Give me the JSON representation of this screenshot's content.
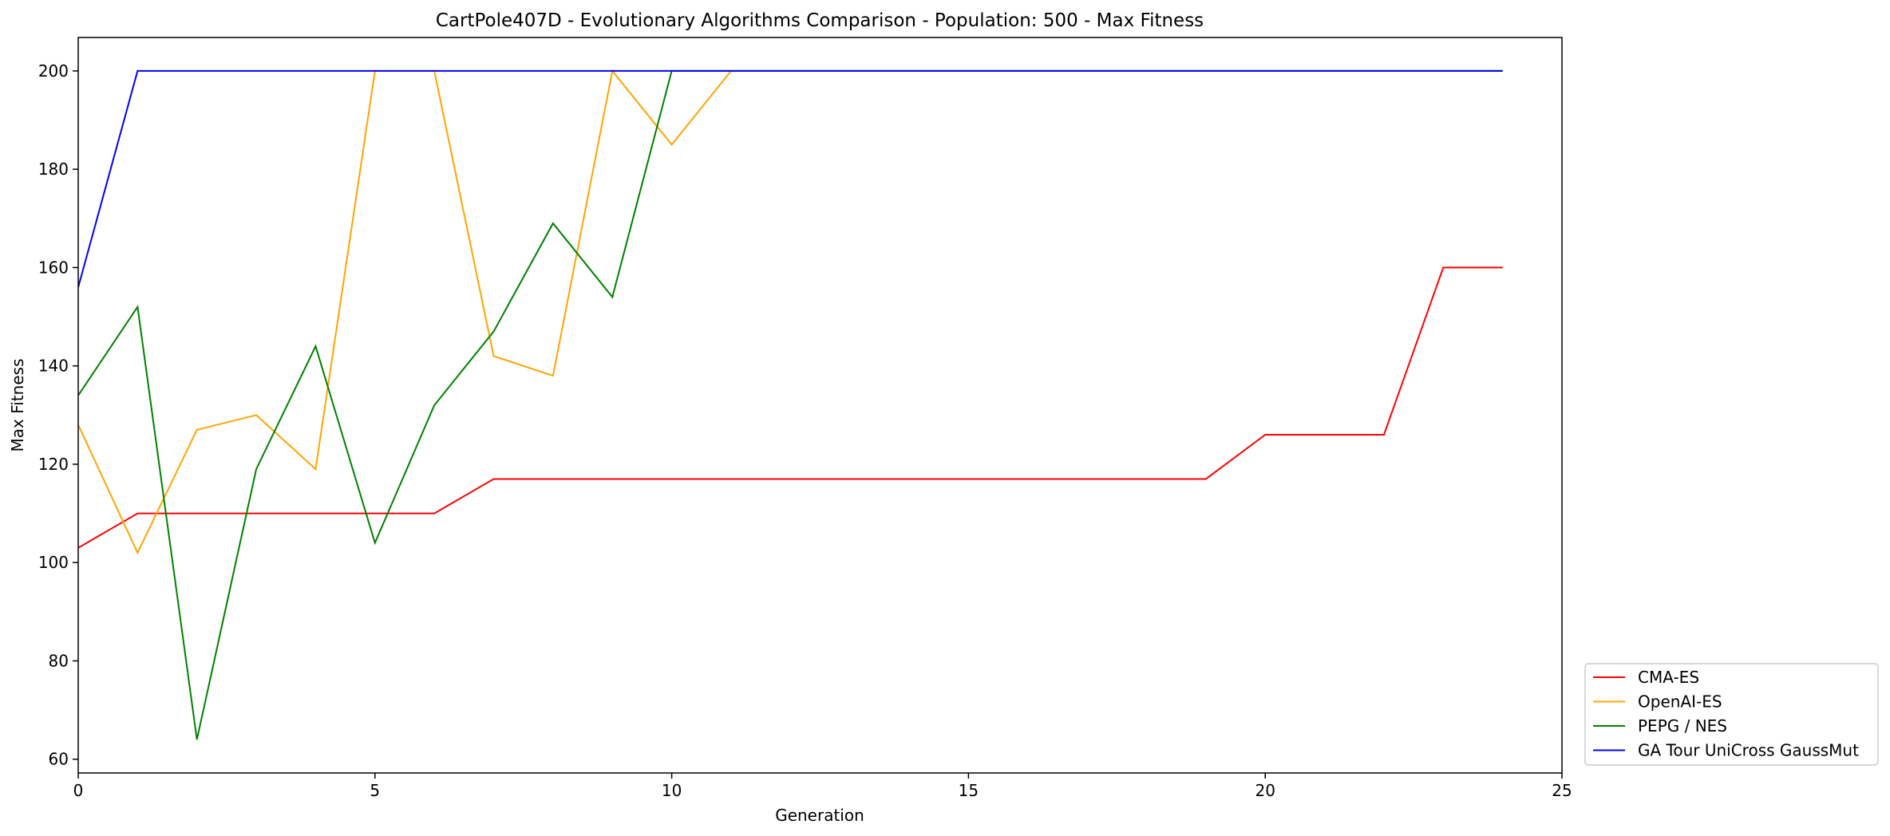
{
  "chart_data": {
    "type": "line",
    "title": "CartPole407D - Evolutionary Algorithms Comparison - Population: 500 - Max Fitness",
    "xlabel": "Generation",
    "ylabel": "Max Fitness",
    "xlim": [
      0,
      25
    ],
    "ylim": [
      57.2,
      206.8
    ],
    "xticks": [
      0,
      5,
      10,
      15,
      20,
      25
    ],
    "yticks": [
      60,
      80,
      100,
      120,
      140,
      160,
      180,
      200
    ],
    "grid": false,
    "legend_position": "outside-lower-right",
    "x": [
      0,
      1,
      2,
      3,
      4,
      5,
      6,
      7,
      8,
      9,
      10,
      11,
      12,
      13,
      14,
      15,
      16,
      17,
      18,
      19,
      20,
      21,
      22,
      23,
      24
    ],
    "series": [
      {
        "name": "CMA-ES",
        "color": "#ff0000",
        "values": [
          103,
          110,
          110,
          110,
          110,
          110,
          110,
          117,
          117,
          117,
          117,
          117,
          117,
          117,
          117,
          117,
          117,
          117,
          117,
          117,
          126,
          126,
          126,
          160,
          160
        ]
      },
      {
        "name": "OpenAI-ES",
        "color": "#ffa500",
        "values": [
          128,
          102,
          127,
          130,
          119,
          200,
          200,
          142,
          138,
          200,
          185,
          200,
          200,
          200,
          200,
          200,
          200,
          200,
          200,
          200,
          200,
          200,
          200,
          200,
          200
        ]
      },
      {
        "name": "PEPG / NES",
        "color": "#008000",
        "values": [
          134,
          152,
          64,
          119,
          144,
          104,
          132,
          147,
          169,
          154,
          200,
          200,
          200,
          200,
          200,
          200,
          200,
          200,
          200,
          200,
          200,
          200,
          200,
          200,
          200
        ]
      },
      {
        "name": "GA Tour UniCross GaussMut",
        "color": "#0000ff",
        "values": [
          156,
          200,
          200,
          200,
          200,
          200,
          200,
          200,
          200,
          200,
          200,
          200,
          200,
          200,
          200,
          200,
          200,
          200,
          200,
          200,
          200,
          200,
          200,
          200,
          200
        ]
      }
    ]
  }
}
